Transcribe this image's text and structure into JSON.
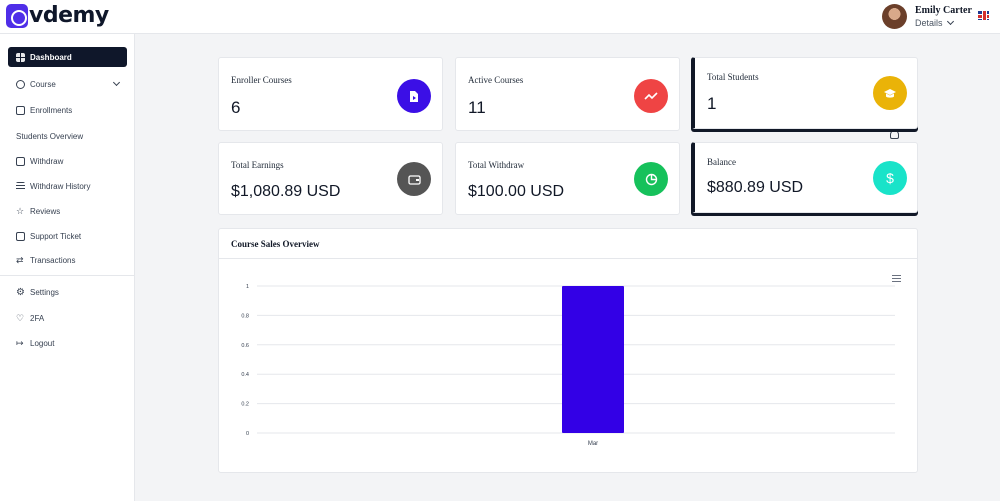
{
  "header": {
    "logo_text": "vdemy",
    "user_name": "Emily Carter",
    "user_details": "Details"
  },
  "sidebar": {
    "items": [
      {
        "label": "Dashboard",
        "icon": "grid-icon",
        "active": true
      },
      {
        "label": "Course",
        "icon": "book-icon",
        "has_submenu": true
      },
      {
        "label": "Enrollments",
        "icon": "card-icon"
      },
      {
        "label": "Students Overview",
        "icon": "user-icon"
      },
      {
        "label": "Withdraw",
        "icon": "wallet-icon"
      },
      {
        "label": "Withdraw History",
        "icon": "list-icon"
      },
      {
        "label": "Reviews",
        "icon": "star-icon"
      },
      {
        "label": "Support Ticket",
        "icon": "ticket-icon"
      },
      {
        "label": "Transactions",
        "icon": "swap-icon"
      },
      {
        "label": "Settings",
        "icon": "gear-icon"
      },
      {
        "label": "2FA",
        "icon": "heart-icon"
      },
      {
        "label": "Logout",
        "icon": "logout-icon"
      }
    ]
  },
  "stats": [
    {
      "label": "Enroller Courses",
      "value": "6",
      "icon": "play-file-icon",
      "color": "#3b0fe6"
    },
    {
      "label": "Active Courses",
      "value": "11",
      "icon": "trend-icon",
      "color": "#ef4444"
    },
    {
      "label": "Total Students",
      "value": "1",
      "icon": "graduation-cap-icon",
      "color": "#eab308"
    },
    {
      "label": "Total Earnings",
      "value": "$1,080.89 USD",
      "icon": "wallet-icon",
      "color": "#555555"
    },
    {
      "label": "Total Withdraw",
      "value": "$100.00 USD",
      "icon": "pie-icon",
      "color": "#16c15b"
    },
    {
      "label": "Balance",
      "value": "$880.89 USD",
      "icon": "dollar-icon",
      "color": "#19e3c9"
    }
  ],
  "chart_panel": {
    "title": "Course Sales Overview"
  },
  "chart_data": {
    "type": "bar",
    "categories": [
      "Mar"
    ],
    "values": [
      1
    ],
    "ylim": [
      0,
      1
    ],
    "yticks": [
      "0",
      "0.2",
      "0.4",
      "0.6",
      "0.8",
      "1"
    ],
    "bar_color": "#3300e6",
    "grid": true
  }
}
